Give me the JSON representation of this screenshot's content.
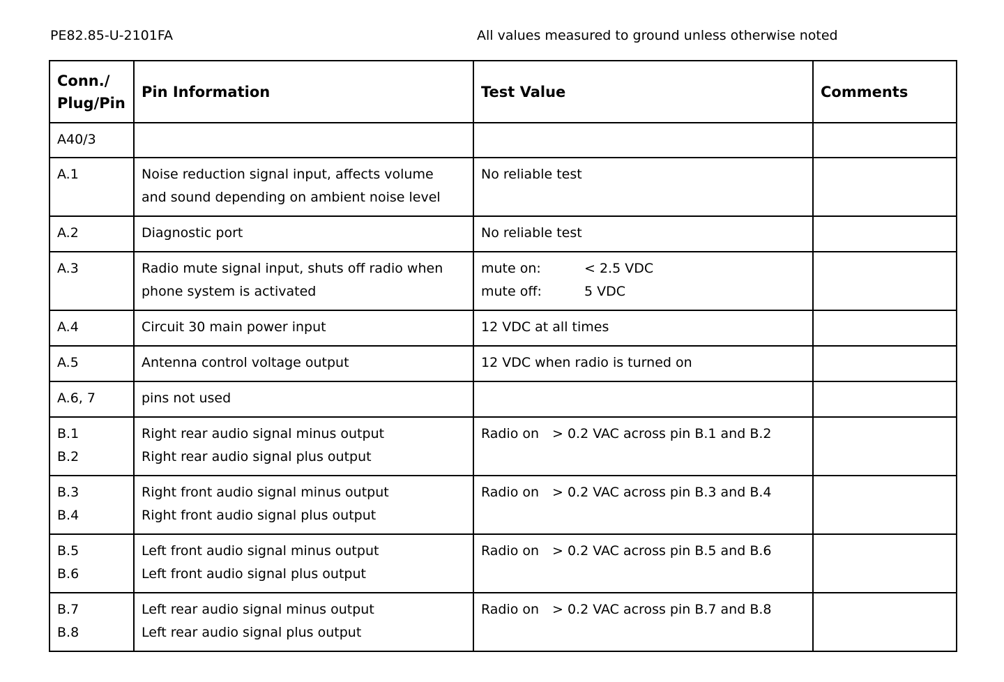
{
  "header": {
    "doc_id": "PE82.85-U-2101FA",
    "note": "All values measured to ground unless otherwise noted"
  },
  "table": {
    "columns": [
      "Conn./\nPlug/Pin",
      "Pin Information",
      "Test Value",
      "Comments"
    ],
    "col1_line1": "Conn./",
    "col1_line2": "Plug/Pin",
    "rows": [
      {
        "pin": [
          "A40/3"
        ],
        "info": [],
        "test": [],
        "comments": ""
      },
      {
        "pin": [
          "A.1"
        ],
        "info": [
          "Noise reduction signal input, affects volume",
          "and sound depending on ambient noise level"
        ],
        "test": [
          [
            "No reliable test",
            ""
          ]
        ],
        "comments": ""
      },
      {
        "pin": [
          "A.2"
        ],
        "info": [
          "Diagnostic port"
        ],
        "test": [
          [
            "No reliable test",
            ""
          ]
        ],
        "comments": ""
      },
      {
        "pin": [
          "A.3"
        ],
        "info": [
          "Radio mute signal input, shuts off radio when",
          "phone system is activated"
        ],
        "test": [
          [
            "mute on:",
            "< 2.5 VDC"
          ],
          [
            "mute off:",
            "5 VDC"
          ]
        ],
        "comments": ""
      },
      {
        "pin": [
          "A.4"
        ],
        "info": [
          "Circuit 30 main power input"
        ],
        "test": [
          [
            "12 VDC at all times",
            ""
          ]
        ],
        "comments": ""
      },
      {
        "pin": [
          "A.5"
        ],
        "info": [
          "Antenna control voltage output"
        ],
        "test": [
          [
            "12 VDC when radio is turned on",
            ""
          ]
        ],
        "comments": ""
      },
      {
        "pin": [
          "A.6, 7"
        ],
        "info": [
          "pins not used"
        ],
        "test": [],
        "comments": ""
      },
      {
        "pin": [
          "B.1",
          "B.2"
        ],
        "info": [
          "Right rear audio signal minus output",
          "Right rear audio signal plus output"
        ],
        "test": [
          [
            "Radio on",
            "> 0.2 VAC across pin B.1 and B.2"
          ]
        ],
        "comments": ""
      },
      {
        "pin": [
          "B.3",
          "B.4"
        ],
        "info": [
          "Right front audio signal minus output",
          "Right front audio signal plus output"
        ],
        "test": [
          [
            "Radio on",
            "> 0.2 VAC across pin B.3 and B.4"
          ]
        ],
        "comments": ""
      },
      {
        "pin": [
          "B.5",
          "B.6"
        ],
        "info": [
          "Left front audio signal minus output",
          "Left front audio signal plus output"
        ],
        "test": [
          [
            "Radio on",
            "> 0.2 VAC across pin B.5 and B.6"
          ]
        ],
        "comments": ""
      },
      {
        "pin": [
          "B.7",
          "B.8"
        ],
        "info": [
          "Left rear audio signal minus output",
          "Left rear audio signal plus output"
        ],
        "test": [
          [
            "Radio on",
            "> 0.2 VAC across pin B.7 and B.8"
          ]
        ],
        "comments": ""
      }
    ]
  }
}
